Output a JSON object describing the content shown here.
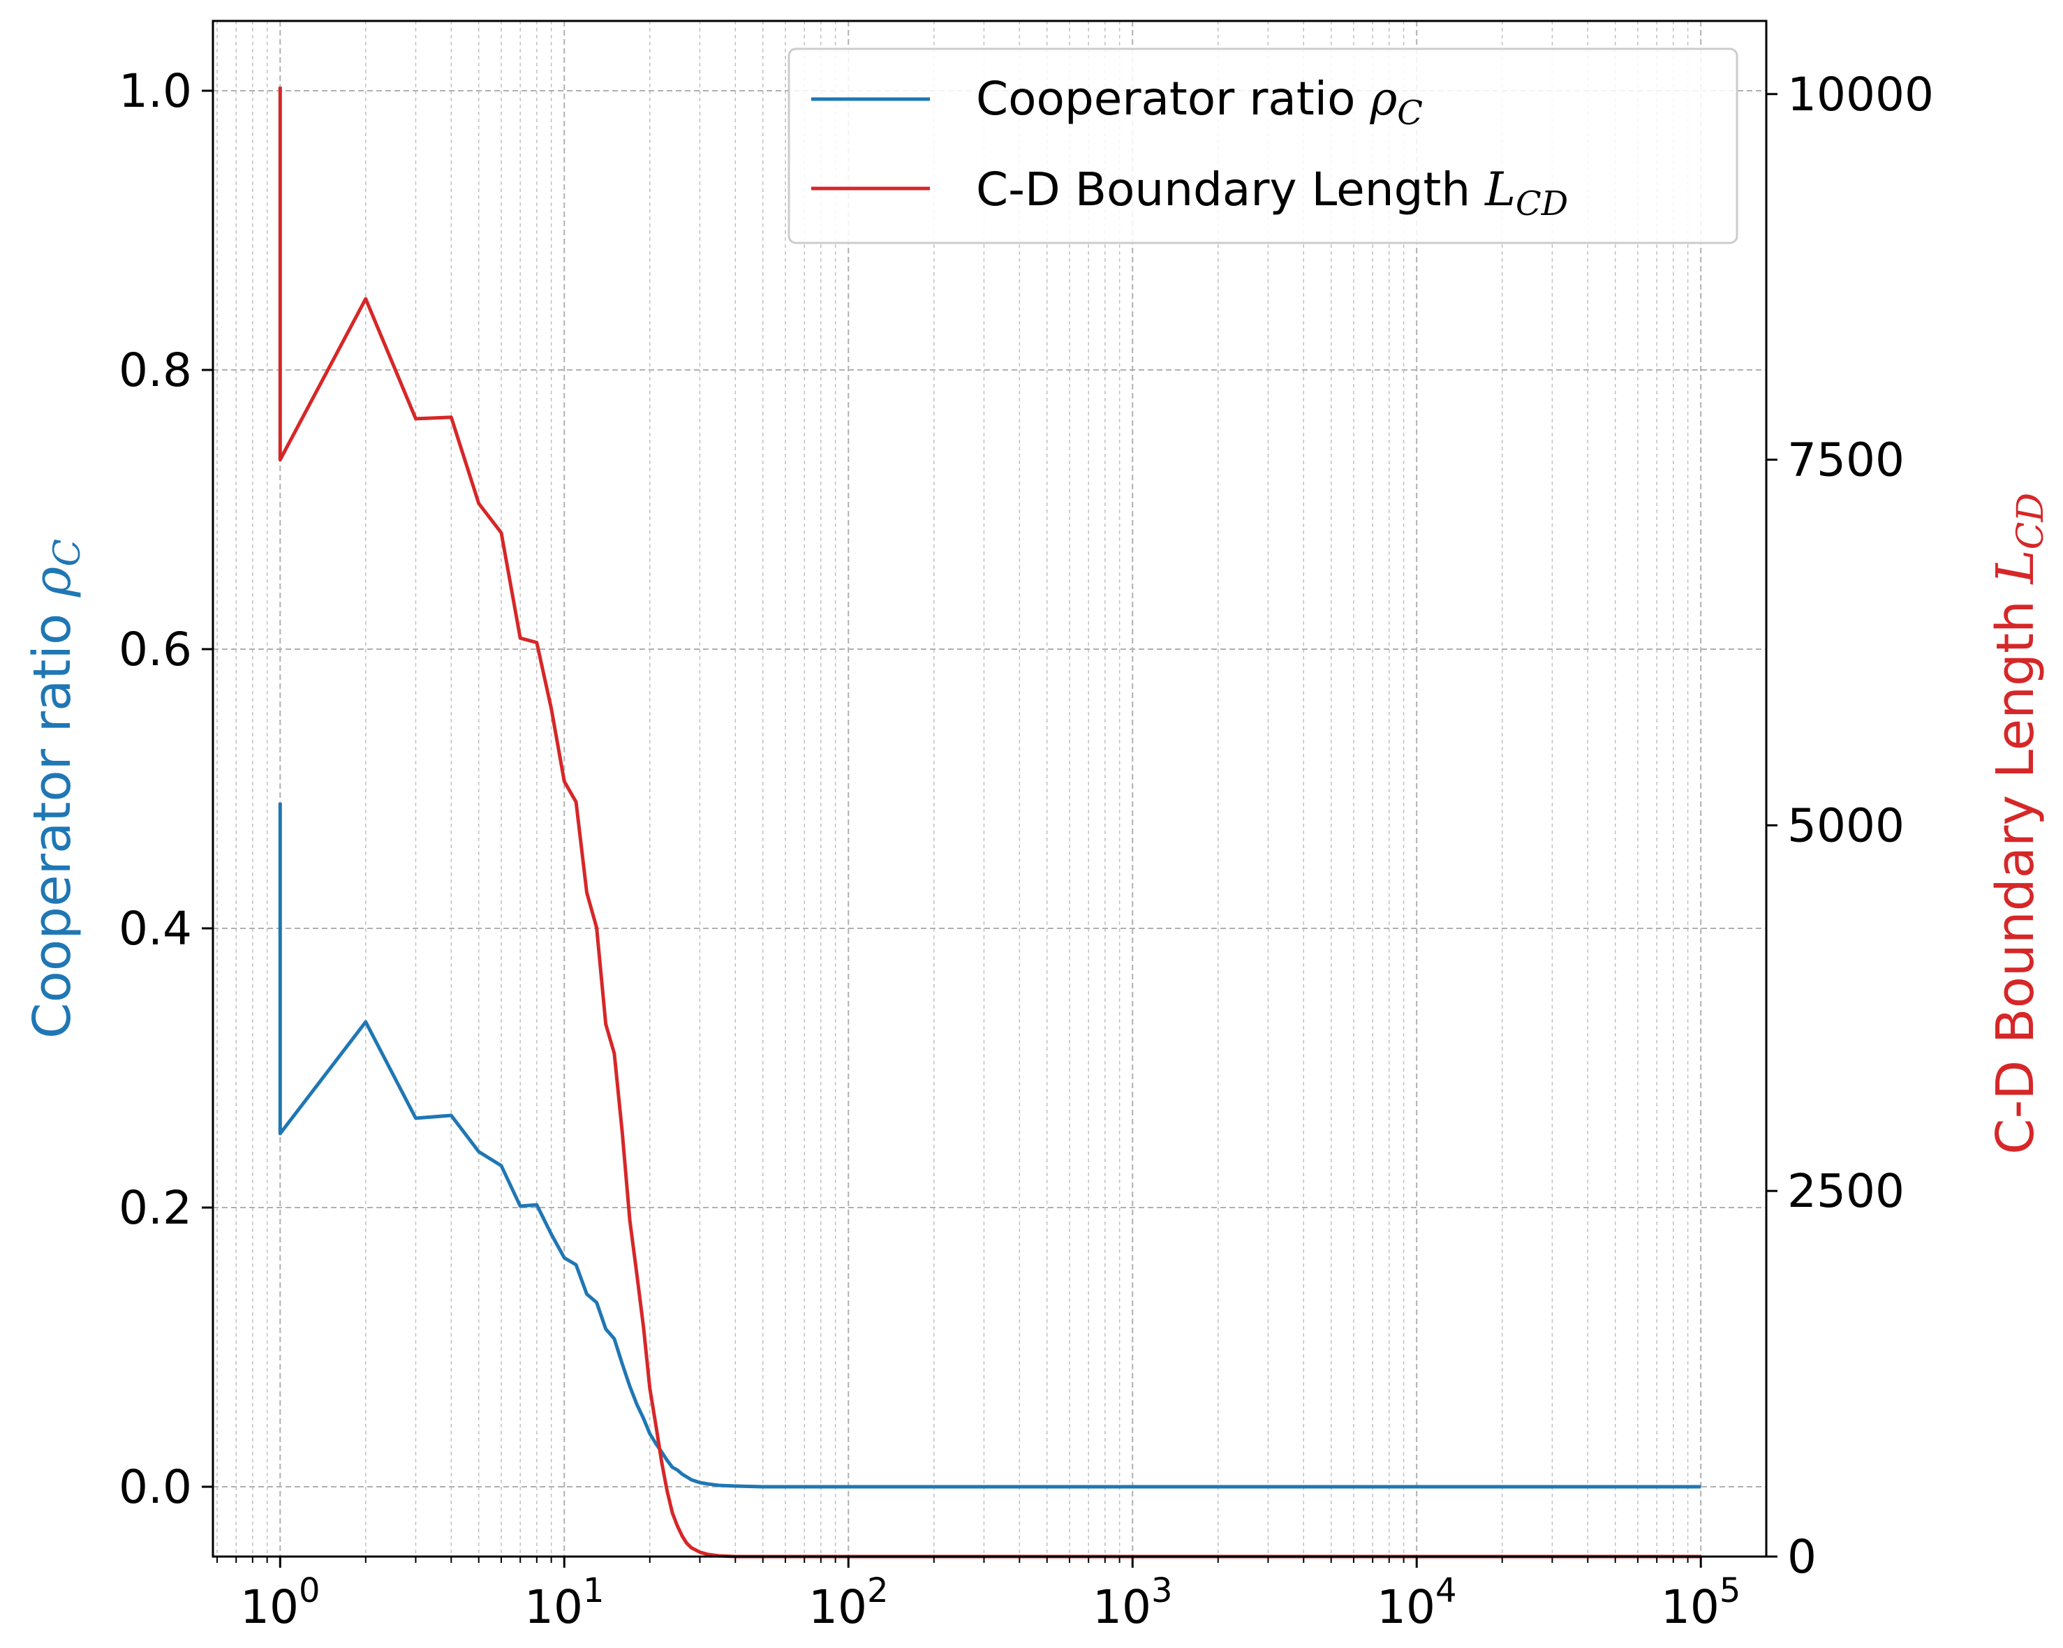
{
  "chart_data": {
    "type": "line",
    "x_scale": "log",
    "xlim": [
      0.58,
      170000
    ],
    "grid": "major and minor, dashed",
    "legend_position": "top-right",
    "y_left": {
      "label": "Cooperator ratio ",
      "label_symbol": "ρ",
      "label_sub": "C",
      "ylim": [
        -0.05,
        1.05
      ],
      "ticks": [
        0.0,
        0.2,
        0.4,
        0.6,
        0.8,
        1.0
      ],
      "tick_labels": [
        "0.0",
        "0.2",
        "0.4",
        "0.6",
        "0.8",
        "1.0"
      ],
      "color": "#1f77b4"
    },
    "y_right": {
      "label": "C-D Boundary Length ",
      "label_symbol": "L",
      "label_sub": "CD",
      "ylim": [
        0,
        10500
      ],
      "ticks": [
        0,
        2500,
        5000,
        7500,
        10000
      ],
      "tick_labels": [
        "0",
        "2500",
        "5000",
        "7500",
        "10000"
      ],
      "color": "#d62728"
    },
    "x_ticks": [
      1,
      10,
      100,
      1000,
      10000,
      100000
    ],
    "x_tick_labels": [
      {
        "base": "10",
        "exp": "0"
      },
      {
        "base": "10",
        "exp": "1"
      },
      {
        "base": "10",
        "exp": "2"
      },
      {
        "base": "10",
        "exp": "3"
      },
      {
        "base": "10",
        "exp": "4"
      },
      {
        "base": "10",
        "exp": "5"
      }
    ],
    "series": [
      {
        "name": "Cooperator ratio ",
        "name_symbol": "ρ",
        "name_sub": "C",
        "axis": "left",
        "color": "#1f77b4",
        "x": [
          1,
          1,
          2,
          3,
          4,
          5,
          6,
          7,
          8,
          9,
          10,
          11,
          12,
          13,
          14,
          15,
          16,
          17,
          18,
          19,
          20,
          21,
          22,
          23,
          24,
          25,
          26,
          27,
          28,
          30,
          32,
          35,
          40,
          50,
          100,
          1000,
          10000,
          100000
        ],
        "y": [
          0.49,
          0.253,
          0.333,
          0.264,
          0.266,
          0.24,
          0.23,
          0.201,
          0.202,
          0.181,
          0.164,
          0.159,
          0.138,
          0.132,
          0.113,
          0.106,
          0.088,
          0.072,
          0.059,
          0.049,
          0.038,
          0.031,
          0.025,
          0.019,
          0.014,
          0.012,
          0.009,
          0.007,
          0.005,
          0.003,
          0.002,
          0.001,
          0.0005,
          0.0,
          0.0,
          0.0,
          0.0,
          0.0
        ]
      },
      {
        "name": "C-D Boundary Length ",
        "name_symbol": "L",
        "name_sub": "CD",
        "axis": "right",
        "color": "#d62728",
        "x": [
          1,
          1,
          2,
          3,
          4,
          5,
          6,
          7,
          8,
          9,
          10,
          11,
          12,
          13,
          14,
          15,
          16,
          17,
          18,
          19,
          20,
          21,
          22,
          23,
          24,
          25,
          26,
          27,
          28,
          30,
          32,
          35,
          40,
          50,
          100,
          1000,
          10000,
          100000
        ],
        "y": [
          10050,
          7500,
          8600,
          7780,
          7790,
          7200,
          7000,
          6280,
          6250,
          5800,
          5300,
          5160,
          4540,
          4300,
          3640,
          3440,
          2900,
          2300,
          1930,
          1570,
          1150,
          900,
          650,
          450,
          300,
          210,
          140,
          90,
          60,
          30,
          15,
          5,
          0,
          0,
          0,
          0,
          0,
          0
        ]
      }
    ]
  },
  "colors": {
    "blue": "#1f77b4",
    "red": "#d62728",
    "grid": "#b0b0b0",
    "axis": "#000000"
  }
}
